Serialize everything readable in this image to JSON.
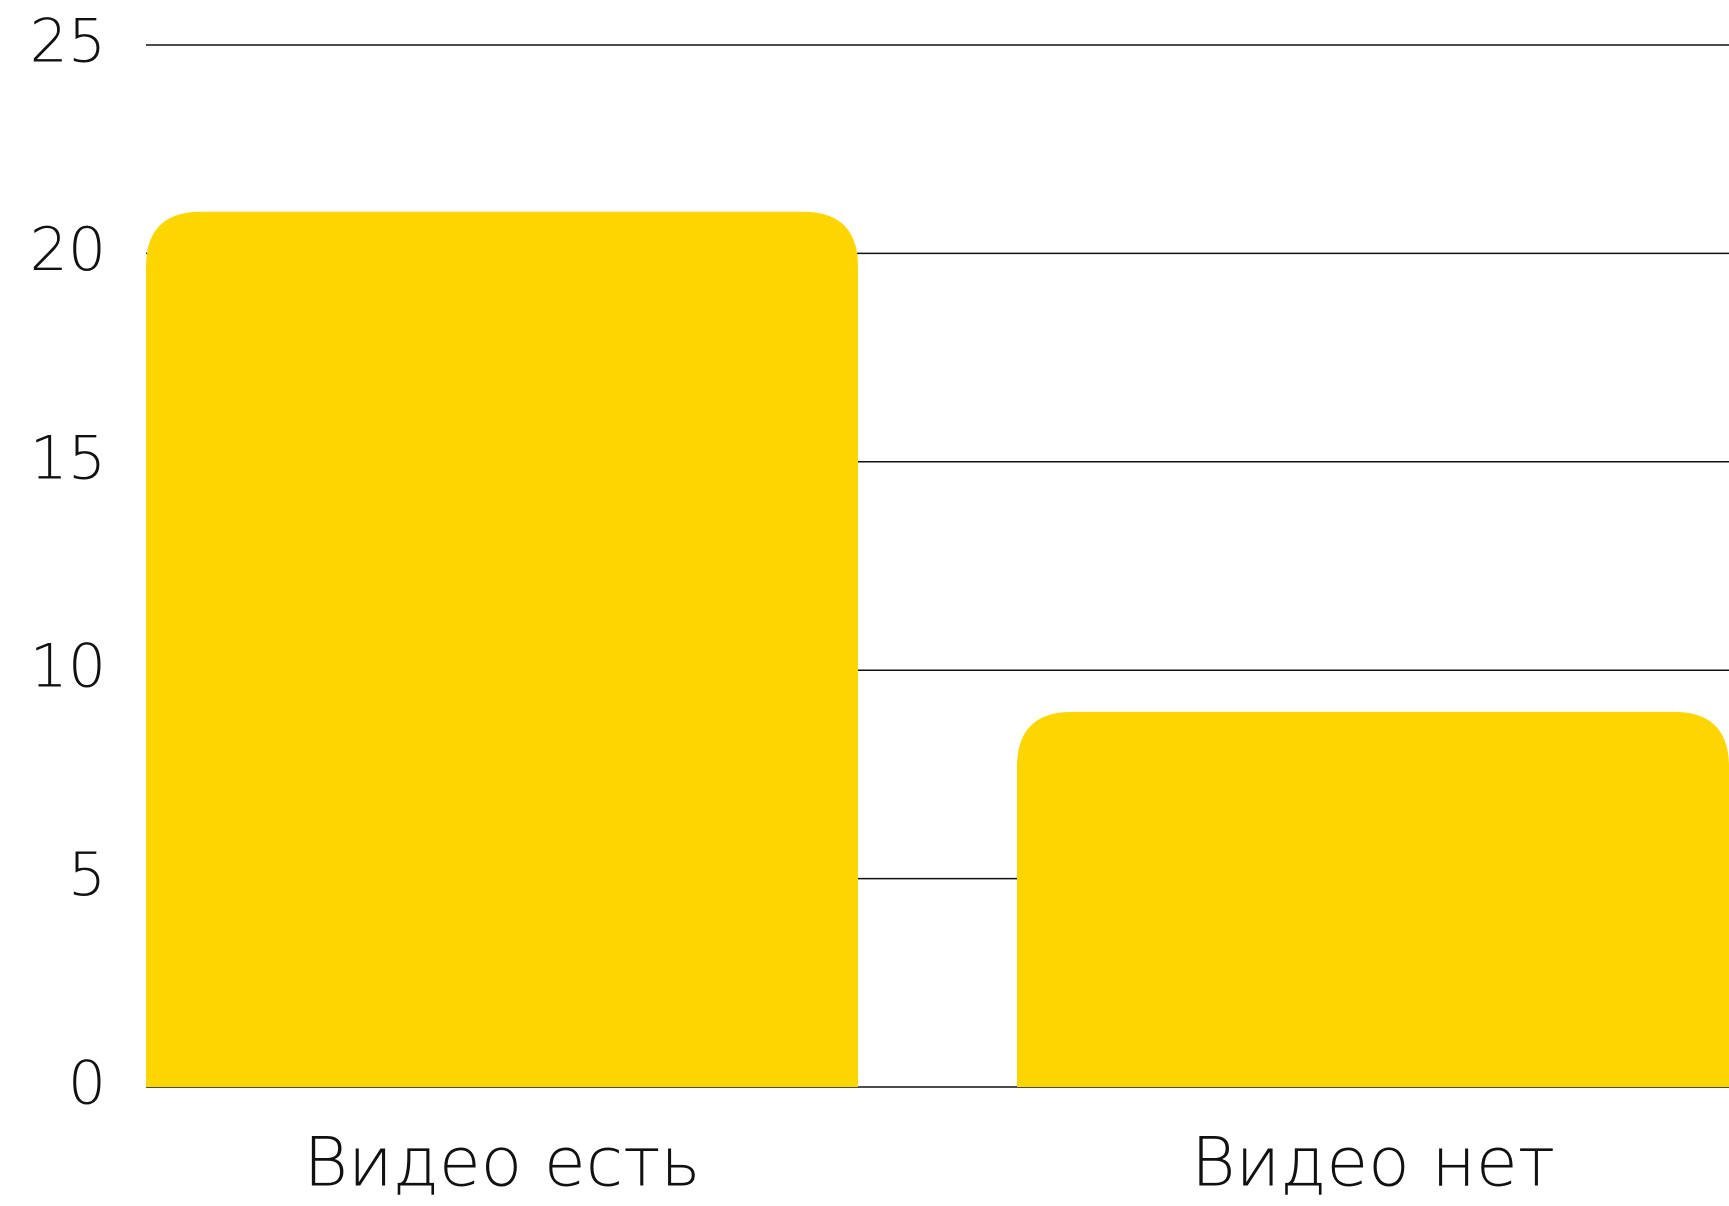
{
  "chart_data": {
    "type": "bar",
    "categories": [
      "Видео есть",
      "Видео нет"
    ],
    "values": [
      21,
      9
    ],
    "color": "#fdd600",
    "ylim": [
      0,
      25
    ],
    "yticks": [
      0,
      5,
      10,
      15,
      20,
      25
    ],
    "grid": true
  }
}
